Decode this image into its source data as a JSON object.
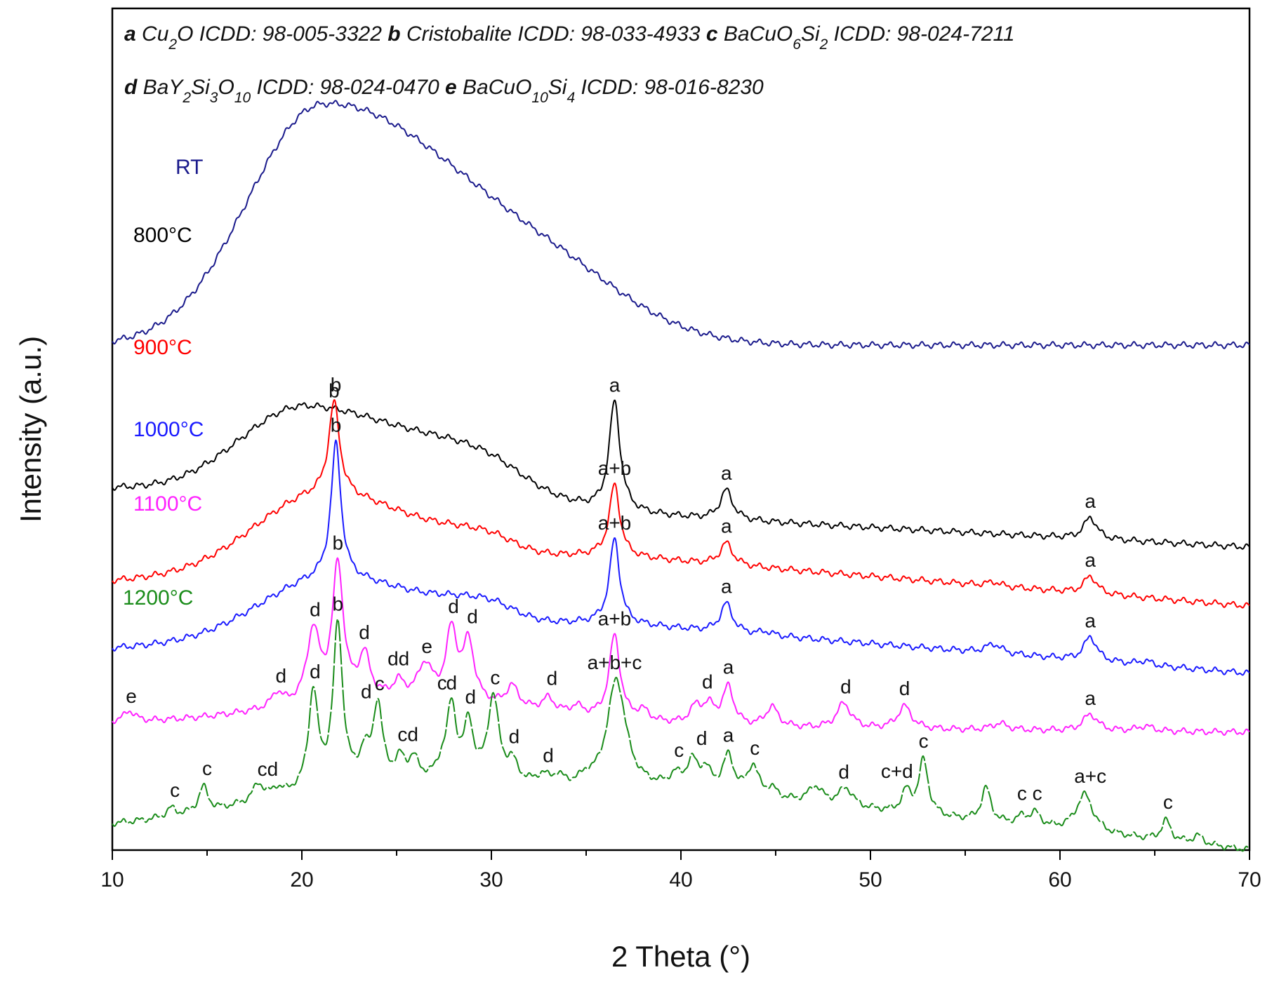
{
  "chart_data": {
    "type": "line",
    "title": "",
    "xlabel": "2 Theta (°)",
    "ylabel": "Intensity (a.u.)",
    "xlim": [
      10,
      70
    ],
    "ylim": [
      0,
      100
    ],
    "xticks": [
      10,
      20,
      30,
      40,
      50,
      60,
      70
    ],
    "xtick_labels": [
      "10",
      "20",
      "30",
      "40",
      "50",
      "60",
      "70"
    ],
    "legend": [
      {
        "key": "a",
        "phase": "Cu",
        "sub1": "2",
        "phase2": "O",
        "icdd": "ICDD: 98-005-3322"
      },
      {
        "key": "b",
        "phase": "Cristobalite",
        "icdd": "ICDD: 98-033-4933"
      },
      {
        "key": "c",
        "phase": "BaCuO",
        "sub1": "6",
        "phase2": "Si",
        "sub2": "2",
        "icdd": "ICDD: 98-024-7211"
      },
      {
        "key": "d",
        "phase": "BaY",
        "sub1": "2",
        "phase2": "Si",
        "sub2": "3",
        "phase3": "O",
        "sub3": "10",
        "icdd": "ICDD: 98-024-0470"
      },
      {
        "key": "e",
        "phase": "BaCuO",
        "sub1": "10",
        "phase2": "Si",
        "sub2": "4",
        "icdd": "ICDD: 98-016-8230"
      }
    ],
    "series": [
      {
        "name": "RT",
        "color": "#1a1a8c",
        "offset": 60,
        "baseline": [
          [
            10,
            0
          ],
          [
            70,
            0
          ]
        ],
        "peaks": [],
        "humps": [
          {
            "x": 21,
            "h": 28,
            "wl": 5.5,
            "wr": 10
          },
          {
            "x": 33,
            "h": 6,
            "wl": 8,
            "wr": 6
          }
        ],
        "annotations": []
      },
      {
        "name": "800°C",
        "color": "#000000",
        "offset": 43,
        "baseline": [
          [
            10,
            0
          ],
          [
            70,
            -7
          ]
        ],
        "peaks": [
          {
            "x": 36.5,
            "h": 13,
            "w": 0.35
          },
          {
            "x": 42.4,
            "h": 3.5,
            "w": 0.4
          },
          {
            "x": 61.6,
            "h": 2.6,
            "w": 0.4
          }
        ],
        "humps": [
          {
            "x": 20.3,
            "h": 11,
            "wl": 5,
            "wr": 9
          },
          {
            "x": 29.5,
            "h": 3,
            "wl": 4,
            "wr": 3
          }
        ],
        "annotations": [
          {
            "x": 21.7,
            "text": "b"
          },
          {
            "x": 36.5,
            "text": "a"
          },
          {
            "x": 42.4,
            "text": "a"
          },
          {
            "x": 61.6,
            "text": "a"
          }
        ]
      },
      {
        "name": "900°C",
        "color": "#ff0000",
        "offset": 32,
        "baseline": [
          [
            10,
            0
          ],
          [
            36,
            3
          ],
          [
            70,
            -3
          ]
        ],
        "peaks": [
          {
            "x": 21.7,
            "h": 11,
            "w": 0.35
          },
          {
            "x": 36.5,
            "h": 8.5,
            "w": 0.33
          },
          {
            "x": 42.4,
            "h": 2.6,
            "w": 0.4
          },
          {
            "x": 61.6,
            "h": 2.1,
            "w": 0.4
          },
          {
            "x": 56.5,
            "h": 0.5,
            "w": 0.4
          }
        ],
        "humps": [
          {
            "x": 21,
            "h": 9,
            "wl": 5,
            "wr": 7
          },
          {
            "x": 29.7,
            "h": 1.8,
            "wl": 3,
            "wr": 2
          }
        ],
        "annotations": [
          {
            "x": 21.8,
            "text": "b"
          },
          {
            "x": 36.5,
            "text": "a+b"
          },
          {
            "x": 42.4,
            "text": "a"
          },
          {
            "x": 61.6,
            "text": "a"
          }
        ]
      },
      {
        "name": "1000°C",
        "color": "#1a1aff",
        "offset": 24,
        "baseline": [
          [
            10,
            0
          ],
          [
            36,
            3
          ],
          [
            70,
            -3
          ]
        ],
        "peaks": [
          {
            "x": 21.8,
            "h": 16,
            "w": 0.32
          },
          {
            "x": 36.5,
            "h": 10,
            "w": 0.32
          },
          {
            "x": 42.4,
            "h": 3.4,
            "w": 0.38
          },
          {
            "x": 61.6,
            "h": 2.9,
            "w": 0.4
          },
          {
            "x": 56.5,
            "h": 1.1,
            "w": 0.5
          },
          {
            "x": 44.5,
            "h": 0.4,
            "w": 0.4
          },
          {
            "x": 64.5,
            "h": 0.5,
            "w": 0.4
          }
        ],
        "humps": [
          {
            "x": 21.3,
            "h": 7,
            "wl": 5,
            "wr": 7
          },
          {
            "x": 29.7,
            "h": 2,
            "wl": 3,
            "wr": 2
          }
        ],
        "annotations": [
          {
            "x": 21.8,
            "text": "b"
          },
          {
            "x": 36.5,
            "text": "a+b"
          },
          {
            "x": 42.4,
            "text": "a"
          },
          {
            "x": 61.6,
            "text": "a"
          }
        ]
      },
      {
        "name": "1100°C",
        "color": "#ff22ff",
        "offset": 15,
        "baseline": [
          [
            10,
            0
          ],
          [
            70,
            -1
          ]
        ],
        "peaks": [
          {
            "x": 10.9,
            "h": 1.3,
            "w": 0.35
          },
          {
            "x": 18.7,
            "h": 1.7,
            "w": 0.35
          },
          {
            "x": 20.6,
            "h": 8.5,
            "w": 0.4
          },
          {
            "x": 21.9,
            "h": 16,
            "w": 0.35
          },
          {
            "x": 23.3,
            "h": 5,
            "w": 0.35
          },
          {
            "x": 25.1,
            "h": 1.8,
            "w": 0.35
          },
          {
            "x": 26.5,
            "h": 4,
            "w": 0.45
          },
          {
            "x": 27.9,
            "h": 8.2,
            "w": 0.35
          },
          {
            "x": 28.8,
            "h": 7,
            "w": 0.35
          },
          {
            "x": 31.1,
            "h": 2.5,
            "w": 0.4
          },
          {
            "x": 33,
            "h": 1.6,
            "w": 0.4
          },
          {
            "x": 34.5,
            "h": 1,
            "w": 0.4
          },
          {
            "x": 36.5,
            "h": 10,
            "w": 0.35
          },
          {
            "x": 38,
            "h": 1.2,
            "w": 0.4
          },
          {
            "x": 40.8,
            "h": 2,
            "w": 0.4
          },
          {
            "x": 41.5,
            "h": 2,
            "w": 0.4
          },
          {
            "x": 42.5,
            "h": 4.5,
            "w": 0.35
          },
          {
            "x": 44.8,
            "h": 2.4,
            "w": 0.4
          },
          {
            "x": 48.6,
            "h": 3,
            "w": 0.45
          },
          {
            "x": 51.8,
            "h": 2.7,
            "w": 0.45
          },
          {
            "x": 56.8,
            "h": 0.8,
            "w": 0.5
          },
          {
            "x": 61.6,
            "h": 2,
            "w": 0.45
          },
          {
            "x": 64.5,
            "h": 0.6,
            "w": 0.5
          }
        ],
        "humps": [
          {
            "x": 25,
            "h": 3,
            "wl": 9,
            "wr": 10
          }
        ],
        "annotations": [
          {
            "x": 11,
            "text": "e"
          },
          {
            "x": 18.9,
            "text": "d"
          },
          {
            "x": 20.7,
            "text": "d"
          },
          {
            "x": 21.9,
            "text": "b"
          },
          {
            "x": 23.3,
            "text": "d"
          },
          {
            "x": 25.1,
            "text": "dd"
          },
          {
            "x": 26.6,
            "text": "e"
          },
          {
            "x": 28.0,
            "text": "d"
          },
          {
            "x": 29.0,
            "text": "d"
          },
          {
            "x": 33.2,
            "text": "d"
          },
          {
            "x": 36.5,
            "text": "a+b"
          },
          {
            "x": 41.4,
            "text": "d"
          },
          {
            "x": 42.5,
            "text": "a"
          },
          {
            "x": 48.7,
            "text": "d"
          },
          {
            "x": 51.8,
            "text": "d"
          },
          {
            "x": 61.6,
            "text": "a"
          }
        ]
      },
      {
        "name": "1200°C",
        "color": "#1a8c1a",
        "offset": 3,
        "baseline": [
          [
            10,
            0
          ],
          [
            40,
            4
          ],
          [
            70,
            -3
          ]
        ],
        "peaks": [
          {
            "x": 13.1,
            "h": 1,
            "w": 0.3
          },
          {
            "x": 14.8,
            "h": 3,
            "w": 0.3
          },
          {
            "x": 17.7,
            "h": 2,
            "w": 0.35
          },
          {
            "x": 18.7,
            "h": 0.9,
            "w": 0.3
          },
          {
            "x": 20.6,
            "h": 11.5,
            "w": 0.3
          },
          {
            "x": 21.9,
            "h": 19,
            "w": 0.3
          },
          {
            "x": 23.3,
            "h": 3,
            "w": 0.3
          },
          {
            "x": 24,
            "h": 9,
            "w": 0.3
          },
          {
            "x": 25.2,
            "h": 2.3,
            "w": 0.3
          },
          {
            "x": 25.9,
            "h": 2.3,
            "w": 0.3
          },
          {
            "x": 27.4,
            "h": 1.5,
            "w": 0.3
          },
          {
            "x": 27.9,
            "h": 8.5,
            "w": 0.3
          },
          {
            "x": 28.8,
            "h": 6.5,
            "w": 0.3
          },
          {
            "x": 30.1,
            "h": 10,
            "w": 0.35
          },
          {
            "x": 31.1,
            "h": 2.2,
            "w": 0.35
          },
          {
            "x": 32.7,
            "h": 1,
            "w": 0.35
          },
          {
            "x": 33.5,
            "h": 1,
            "w": 0.35
          },
          {
            "x": 35.0,
            "h": 0.8,
            "w": 0.35
          },
          {
            "x": 36.6,
            "h": 13,
            "w": 0.6
          },
          {
            "x": 39.7,
            "h": 1.2,
            "w": 0.35
          },
          {
            "x": 40.6,
            "h": 3,
            "w": 0.35
          },
          {
            "x": 41.3,
            "h": 2.2,
            "w": 0.35
          },
          {
            "x": 42.5,
            "h": 4.3,
            "w": 0.35
          },
          {
            "x": 43.8,
            "h": 3.5,
            "w": 0.35
          },
          {
            "x": 44.8,
            "h": 1,
            "w": 0.35
          },
          {
            "x": 47.1,
            "h": 2,
            "w": 0.45
          },
          {
            "x": 48.7,
            "h": 2.2,
            "w": 0.45
          },
          {
            "x": 51.9,
            "h": 2.5,
            "w": 0.3
          },
          {
            "x": 52.8,
            "h": 6.5,
            "w": 0.3
          },
          {
            "x": 56.1,
            "h": 4,
            "w": 0.3
          },
          {
            "x": 58.0,
            "h": 0.9,
            "w": 0.35
          },
          {
            "x": 58.7,
            "h": 1.5,
            "w": 0.35
          },
          {
            "x": 61.3,
            "h": 4.5,
            "w": 0.55
          },
          {
            "x": 65.6,
            "h": 2.4,
            "w": 0.3
          },
          {
            "x": 67.3,
            "h": 1,
            "w": 0.35
          }
        ],
        "humps": [
          {
            "x": 24,
            "h": 3,
            "wl": 8,
            "wr": 10
          }
        ],
        "annotations": [
          {
            "x": 13.3,
            "text": "c"
          },
          {
            "x": 15.0,
            "text": "c"
          },
          {
            "x": 18.2,
            "text": "cd"
          },
          {
            "x": 20.7,
            "text": "d"
          },
          {
            "x": 21.9,
            "text": "b"
          },
          {
            "x": 23.4,
            "text": "d"
          },
          {
            "x": 24.1,
            "text": "c"
          },
          {
            "x": 25.6,
            "text": "cd"
          },
          {
            "x": 27.4,
            "text": "c"
          },
          {
            "x": 27.9,
            "text": "d"
          },
          {
            "x": 28.9,
            "text": "d"
          },
          {
            "x": 30.2,
            "text": "c"
          },
          {
            "x": 31.2,
            "text": "d"
          },
          {
            "x": 36.5,
            "text": "a+b+c"
          },
          {
            "x": 33.0,
            "text": "d"
          },
          {
            "x": 39.9,
            "text": "c"
          },
          {
            "x": 41.1,
            "text": "d"
          },
          {
            "x": 42.5,
            "text": "a"
          },
          {
            "x": 43.9,
            "text": "c"
          },
          {
            "x": 48.6,
            "text": "d"
          },
          {
            "x": 51.4,
            "text": "c+d"
          },
          {
            "x": 52.8,
            "text": "c"
          },
          {
            "x": 58.4,
            "text": "c c"
          },
          {
            "x": 61.6,
            "text": "a+c"
          },
          {
            "x": 65.7,
            "text": "c"
          }
        ]
      }
    ]
  }
}
